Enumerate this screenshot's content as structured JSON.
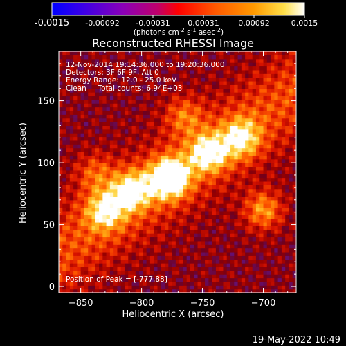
{
  "chart_data": {
    "type": "heatmap",
    "title": "Reconstructed RHESSI Image",
    "xlabel": "Heliocentric X (arcsec)",
    "ylabel": "Heliocentric Y (arcsec)",
    "xlim": [
      -868,
      -673
    ],
    "ylim": [
      -5,
      190
    ],
    "xticks": [
      -850,
      -800,
      -750,
      -700
    ],
    "yticks": [
      0,
      50,
      100,
      150
    ],
    "colorbar": {
      "vmin": -0.0015,
      "vmax": 0.0015,
      "ticks": [
        "-0.0015",
        "-0.00092",
        "-0.00031",
        "0.00031",
        "0.00092",
        "0.0015"
      ],
      "units": "(photons cm",
      "units_exp1": "-2",
      "units_mid": " s",
      "units_exp2": "-1",
      "units_end": " asec",
      "units_exp3": "-2",
      "units_close": ")",
      "colormap": "red-temperature with blue-purple negatives"
    },
    "annotations": [
      "12-Nov-2014 19:14:36.000 to 19:20:36.000",
      "Detectors: 3F 6F 9F, Att 0",
      "Energy Range: 12.0 - 25.0 keV",
      "Clean     Total counts: 6.94E+03"
    ],
    "peak_label": "Position of Peak = [-777,88]",
    "peak": [
      -777,
      88
    ],
    "sources": [
      {
        "x": -777,
        "y": 88,
        "amp": 1.0
      },
      {
        "x": -808,
        "y": 78,
        "amp": 0.72
      },
      {
        "x": -830,
        "y": 62,
        "amp": 0.62
      },
      {
        "x": -745,
        "y": 108,
        "amp": 0.7
      },
      {
        "x": -718,
        "y": 120,
        "amp": 0.62
      },
      {
        "x": -700,
        "y": 62,
        "amp": 0.55
      },
      {
        "x": -765,
        "y": 138,
        "amp": 0.4
      },
      {
        "x": -838,
        "y": 92,
        "amp": 0.35
      }
    ]
  },
  "footer": {
    "date": "19-May-2022 10:49"
  }
}
